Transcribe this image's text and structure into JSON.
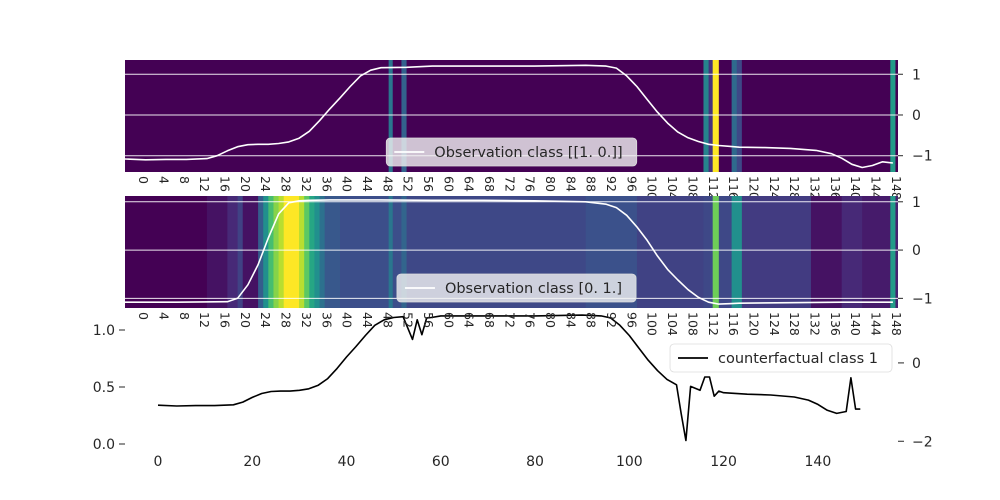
{
  "chart_data": [
    {
      "type": "heatmap",
      "title": "",
      "xlabel": "",
      "ylabel": "",
      "ylim": [
        -1.4,
        1.35
      ],
      "yticks": [
        -1,
        0,
        1
      ],
      "ytick_labels": [
        "−1",
        "0",
        "1"
      ],
      "x_range": [
        0,
        151
      ],
      "xtick_labels": [
        "0",
        "4",
        "8",
        "12",
        "16",
        "20",
        "24",
        "28",
        "32",
        "36",
        "40",
        "44",
        "48",
        "52",
        "56",
        "60",
        "64",
        "68",
        "72",
        "76",
        "80",
        "84",
        "88",
        "92",
        "96",
        "100",
        "104",
        "108",
        "112",
        "116",
        "120",
        "124",
        "128",
        "132",
        "136",
        "140",
        "144",
        "148"
      ],
      "grid": true,
      "legend": {
        "position": "bottom-center",
        "entries": [
          {
            "label": "Observation class [[1. 0.]]",
            "color": "#ffffff"
          }
        ]
      },
      "series": [
        {
          "name": "Observation class [[1. 0.]]",
          "color": "#ffffff",
          "x": [
            0,
            4,
            8,
            12,
            16,
            18,
            20,
            22,
            24,
            26,
            28,
            30,
            32,
            34,
            36,
            38,
            40,
            42,
            44,
            46,
            48,
            50,
            55,
            60,
            70,
            80,
            90,
            94,
            96,
            98,
            100,
            102,
            104,
            106,
            108,
            110,
            112,
            114,
            116,
            118,
            120,
            125,
            130,
            135,
            138,
            140,
            142,
            144,
            146,
            148,
            150
          ],
          "y": [
            -1.08,
            -1.1,
            -1.09,
            -1.09,
            -1.07,
            -1.0,
            -0.88,
            -0.78,
            -0.73,
            -0.72,
            -0.72,
            -0.7,
            -0.66,
            -0.57,
            -0.4,
            -0.14,
            0.15,
            0.42,
            0.7,
            0.96,
            1.1,
            1.16,
            1.17,
            1.2,
            1.2,
            1.2,
            1.22,
            1.2,
            1.15,
            0.96,
            0.7,
            0.38,
            0.07,
            -0.2,
            -0.42,
            -0.56,
            -0.65,
            -0.72,
            -0.75,
            -0.77,
            -0.79,
            -0.8,
            -0.82,
            -0.87,
            -0.95,
            -1.06,
            -1.21,
            -1.29,
            -1.24,
            -1.15,
            -1.18
          ]
        }
      ],
      "heat_bands": [
        {
          "x0": 0,
          "x1": 51.5,
          "level": 0.0
        },
        {
          "x0": 51.5,
          "x1": 52.3,
          "level": 0.4
        },
        {
          "x0": 52.3,
          "x1": 54,
          "level": 0.0
        },
        {
          "x0": 54,
          "x1": 55,
          "level": 0.32
        },
        {
          "x0": 55,
          "x1": 113,
          "level": 0.0
        },
        {
          "x0": 113,
          "x1": 114,
          "level": 0.45
        },
        {
          "x0": 114,
          "x1": 114.8,
          "level": 0.15
        },
        {
          "x0": 114.8,
          "x1": 116,
          "level": 1.0
        },
        {
          "x0": 116,
          "x1": 118.5,
          "level": 0.0
        },
        {
          "x0": 118.5,
          "x1": 119.5,
          "level": 0.35
        },
        {
          "x0": 119.5,
          "x1": 120.5,
          "level": 0.22
        },
        {
          "x0": 120.5,
          "x1": 149.5,
          "level": 0.0
        },
        {
          "x0": 149.5,
          "x1": 150.5,
          "level": 0.55
        },
        {
          "x0": 150.5,
          "x1": 151,
          "level": 0.0
        }
      ]
    },
    {
      "type": "heatmap",
      "title": "",
      "xlabel": "",
      "ylabel": "",
      "ylim": [
        -1.2,
        1.12
      ],
      "yticks": [
        -1,
        0,
        1
      ],
      "ytick_labels": [
        "−1",
        "0",
        "1"
      ],
      "x_range": [
        0,
        151
      ],
      "xtick_labels": [
        "0",
        "4",
        "8",
        "12",
        "16",
        "20",
        "24",
        "28",
        "32",
        "36",
        "40",
        "44",
        "48",
        "52",
        "56",
        "60",
        "64",
        "68",
        "72",
        "76",
        "80",
        "84",
        "88",
        "92",
        "96",
        "100",
        "104",
        "108",
        "112",
        "116",
        "120",
        "124",
        "128",
        "132",
        "136",
        "140",
        "144",
        "148"
      ],
      "grid": true,
      "legend": {
        "position": "bottom-center",
        "entries": [
          {
            "label": "Observation class [0. 1.]",
            "color": "#ffffff"
          }
        ]
      },
      "series": [
        {
          "name": "Observation class [0. 1.]",
          "color": "#ffffff",
          "x": [
            0,
            10,
            20,
            22,
            24,
            26,
            28,
            30,
            32,
            34,
            36,
            40,
            50,
            60,
            70,
            80,
            90,
            94,
            96,
            98,
            100,
            102,
            104,
            106,
            108,
            110,
            112,
            114,
            116,
            118,
            120,
            130,
            140,
            150
          ],
          "y": [
            -1.08,
            -1.08,
            -1.07,
            -1.0,
            -0.72,
            -0.3,
            0.25,
            0.75,
            0.98,
            1.02,
            1.03,
            1.04,
            1.04,
            1.03,
            1.03,
            1.02,
            1.0,
            0.95,
            0.88,
            0.72,
            0.48,
            0.2,
            -0.12,
            -0.4,
            -0.62,
            -0.82,
            -0.98,
            -1.08,
            -1.12,
            -1.11,
            -1.1,
            -1.09,
            -1.08,
            -1.08
          ]
        }
      ],
      "heat_bands": [
        {
          "x0": 0,
          "x1": 16,
          "level": 0.0
        },
        {
          "x0": 16,
          "x1": 20,
          "level": 0.05
        },
        {
          "x0": 20,
          "x1": 22,
          "level": 0.12
        },
        {
          "x0": 22,
          "x1": 23,
          "level": 0.2
        },
        {
          "x0": 23,
          "x1": 26,
          "level": 0.05
        },
        {
          "x0": 26,
          "x1": 27,
          "level": 0.3
        },
        {
          "x0": 27,
          "x1": 28,
          "level": 0.5
        },
        {
          "x0": 28,
          "x1": 29,
          "level": 0.7
        },
        {
          "x0": 29,
          "x1": 30,
          "level": 0.82
        },
        {
          "x0": 30,
          "x1": 31,
          "level": 0.9
        },
        {
          "x0": 31,
          "x1": 34,
          "level": 1.0
        },
        {
          "x0": 34,
          "x1": 35,
          "level": 0.9
        },
        {
          "x0": 35,
          "x1": 36,
          "level": 0.75
        },
        {
          "x0": 36,
          "x1": 37,
          "level": 0.6
        },
        {
          "x0": 37,
          "x1": 38,
          "level": 0.5
        },
        {
          "x0": 38,
          "x1": 39,
          "level": 0.38
        },
        {
          "x0": 39,
          "x1": 42,
          "level": 0.28
        },
        {
          "x0": 42,
          "x1": 51.5,
          "level": 0.24
        },
        {
          "x0": 51.5,
          "x1": 52.3,
          "level": 0.4
        },
        {
          "x0": 52.3,
          "x1": 54,
          "level": 0.24
        },
        {
          "x0": 54,
          "x1": 55,
          "level": 0.33
        },
        {
          "x0": 55,
          "x1": 90,
          "level": 0.22
        },
        {
          "x0": 90,
          "x1": 100,
          "level": 0.25
        },
        {
          "x0": 100,
          "x1": 113,
          "level": 0.2
        },
        {
          "x0": 113,
          "x1": 114.8,
          "level": 0.22
        },
        {
          "x0": 114.8,
          "x1": 116,
          "level": 0.78
        },
        {
          "x0": 116,
          "x1": 118.5,
          "level": 0.22
        },
        {
          "x0": 118.5,
          "x1": 120.5,
          "level": 0.5
        },
        {
          "x0": 120.5,
          "x1": 134,
          "level": 0.18
        },
        {
          "x0": 134,
          "x1": 140,
          "level": 0.05
        },
        {
          "x0": 140,
          "x1": 144,
          "level": 0.12
        },
        {
          "x0": 144,
          "x1": 149.5,
          "level": 0.08
        },
        {
          "x0": 149.5,
          "x1": 150.5,
          "level": 0.55
        },
        {
          "x0": 150.5,
          "x1": 151,
          "level": 0.1
        }
      ]
    },
    {
      "type": "line",
      "title": "",
      "xlabel": "",
      "ylabel": "",
      "xlim": [
        -7,
        157
      ],
      "ylim": [
        0,
        1.0
      ],
      "yticks": [
        0.0,
        0.5,
        1.0
      ],
      "ytick_labels": [
        "0.0",
        "0.5",
        "1.0"
      ],
      "xticks": [
        0,
        20,
        40,
        60,
        80,
        100,
        120,
        140
      ],
      "xtick_labels": [
        "0",
        "20",
        "40",
        "60",
        "80",
        "100",
        "120",
        "140"
      ],
      "secondary_ylim": [
        -2.07,
        0.84
      ],
      "secondary_yticks": [
        -2,
        0
      ],
      "secondary_ytick_labels": [
        "−2",
        "0"
      ],
      "grid": false,
      "legend": {
        "position": "top-right",
        "entries": [
          {
            "label": "counterfactual class 1",
            "color": "#000000"
          }
        ]
      },
      "series": [
        {
          "name": "counterfactual class 1",
          "color": "#000000",
          "axis": "secondary",
          "x": [
            0,
            4,
            8,
            12,
            16,
            18,
            20,
            22,
            24,
            26,
            28,
            30,
            32,
            34,
            36,
            38,
            40,
            42,
            44,
            46,
            48,
            50,
            52,
            54,
            55,
            56,
            57,
            58,
            60,
            70,
            80,
            90,
            94,
            96,
            98,
            100,
            102,
            104,
            106,
            108,
            110,
            111,
            112,
            113,
            115,
            116,
            117,
            118,
            119,
            120,
            125,
            130,
            135,
            138,
            140,
            142,
            144,
            146,
            147,
            148,
            149
          ],
          "y": [
            -1.08,
            -1.1,
            -1.09,
            -1.09,
            -1.07,
            -1.0,
            -0.88,
            -0.78,
            -0.73,
            -0.72,
            -0.72,
            -0.7,
            -0.66,
            -0.57,
            -0.4,
            -0.14,
            0.15,
            0.42,
            0.7,
            0.96,
            1.1,
            1.16,
            1.18,
            0.6,
            1.1,
            0.72,
            1.15,
            1.16,
            1.2,
            1.2,
            1.2,
            1.22,
            1.2,
            1.15,
            0.96,
            0.7,
            0.38,
            0.07,
            -0.2,
            -0.42,
            -0.56,
            -1.3,
            -1.98,
            -0.6,
            -0.7,
            -0.36,
            -0.36,
            -0.85,
            -0.72,
            -0.76,
            -0.8,
            -0.82,
            -0.87,
            -0.95,
            -1.06,
            -1.21,
            -1.29,
            -1.24,
            -0.38,
            -1.18,
            -1.18
          ]
        }
      ]
    }
  ]
}
